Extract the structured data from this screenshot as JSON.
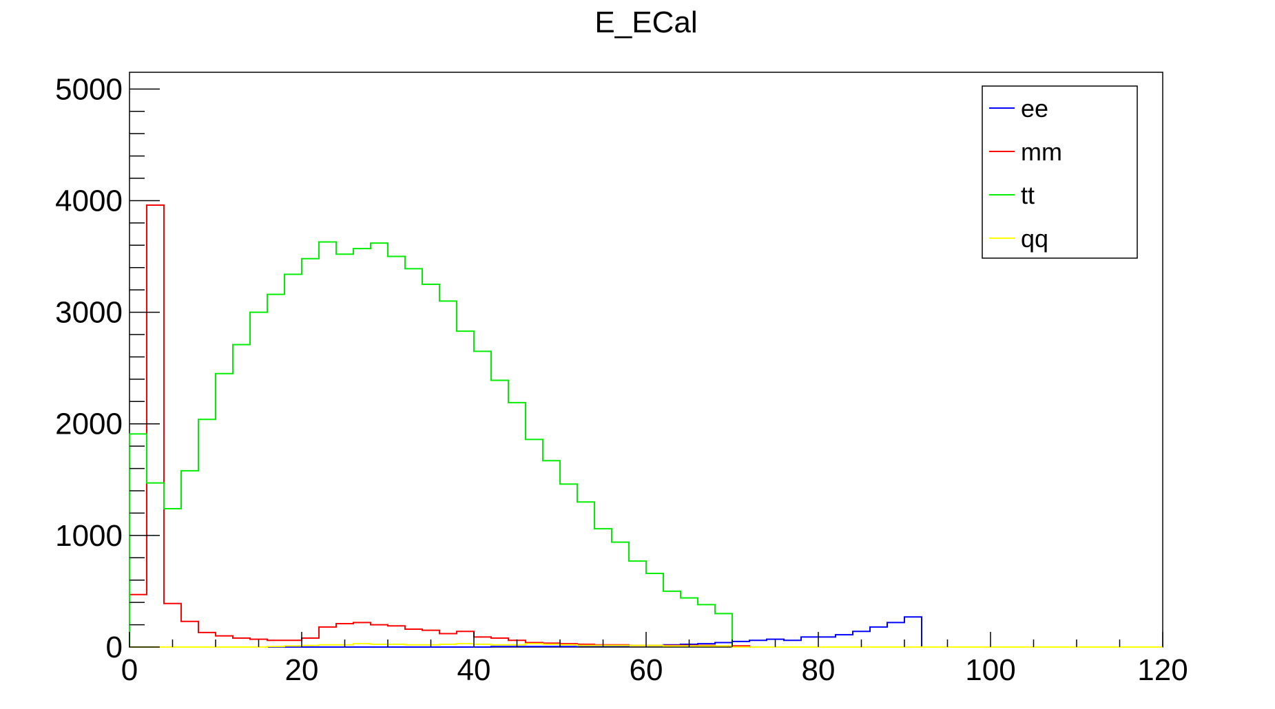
{
  "chart_data": {
    "type": "line",
    "style": "step-histogram",
    "title": "E_ECal",
    "xlabel": "",
    "ylabel": "",
    "xlim": [
      0,
      120
    ],
    "ylim": [
      0,
      5150
    ],
    "bin_width": 2,
    "x_ticks": [
      0,
      20,
      40,
      60,
      80,
      100,
      120
    ],
    "x_tick_labels": [
      "0",
      "20",
      "40",
      "60",
      "80",
      "100",
      "120"
    ],
    "y_ticks": [
      0,
      1000,
      2000,
      3000,
      4000,
      5000
    ],
    "y_tick_labels": [
      "0",
      "1000",
      "2000",
      "3000",
      "4000",
      "5000"
    ],
    "grid": false,
    "legend_position": "top-right",
    "series": [
      {
        "name": "ee",
        "color": "#0000ff",
        "values": [
          0,
          0,
          0,
          0,
          0,
          0,
          0,
          0,
          0,
          0,
          0,
          0,
          0,
          0,
          0,
          0,
          0,
          0,
          0,
          0,
          0,
          5,
          5,
          5,
          5,
          5,
          10,
          10,
          10,
          15,
          15,
          20,
          25,
          30,
          40,
          50,
          60,
          70,
          60,
          90,
          90,
          110,
          140,
          180,
          220,
          270,
          0,
          0,
          0,
          0,
          0,
          0,
          0,
          0,
          0,
          0,
          0,
          0,
          0,
          0
        ]
      },
      {
        "name": "mm",
        "color": "#ff0000",
        "values": [
          470,
          3960,
          390,
          230,
          130,
          100,
          80,
          70,
          60,
          60,
          80,
          180,
          210,
          220,
          200,
          190,
          160,
          150,
          120,
          140,
          90,
          80,
          60,
          40,
          35,
          30,
          25,
          20,
          20,
          15,
          15,
          15,
          15,
          15,
          10,
          10,
          0,
          0,
          0,
          0,
          0,
          0,
          0,
          0,
          0,
          0,
          0,
          0,
          0,
          0,
          0,
          0,
          0,
          0,
          0,
          0,
          0,
          0,
          0,
          0
        ]
      },
      {
        "name": "tt",
        "color": "#00ee00",
        "values": [
          1910,
          1470,
          1240,
          1580,
          2040,
          2450,
          2710,
          3000,
          3160,
          3340,
          3480,
          3630,
          3520,
          3570,
          3620,
          3500,
          3390,
          3250,
          3100,
          2830,
          2650,
          2390,
          2190,
          1860,
          1670,
          1460,
          1300,
          1060,
          940,
          770,
          660,
          500,
          440,
          380,
          300,
          0,
          0,
          0,
          0,
          0,
          0,
          0,
          0,
          0,
          0,
          0,
          0,
          0,
          0,
          0,
          0,
          0,
          0,
          0,
          0,
          0,
          0,
          0,
          0,
          0
        ]
      },
      {
        "name": "qq",
        "color": "#ffff00",
        "values": [
          0,
          0,
          0,
          0,
          0,
          0,
          0,
          0,
          5,
          10,
          15,
          20,
          20,
          30,
          25,
          25,
          20,
          20,
          25,
          30,
          25,
          20,
          20,
          30,
          25,
          20,
          15,
          15,
          15,
          15,
          15,
          10,
          10,
          10,
          10,
          0,
          0,
          0,
          0,
          0,
          0,
          0,
          0,
          0,
          0,
          0,
          0,
          0,
          0,
          0,
          0,
          0,
          0,
          0,
          0,
          0,
          0,
          0,
          0,
          0
        ]
      }
    ]
  }
}
